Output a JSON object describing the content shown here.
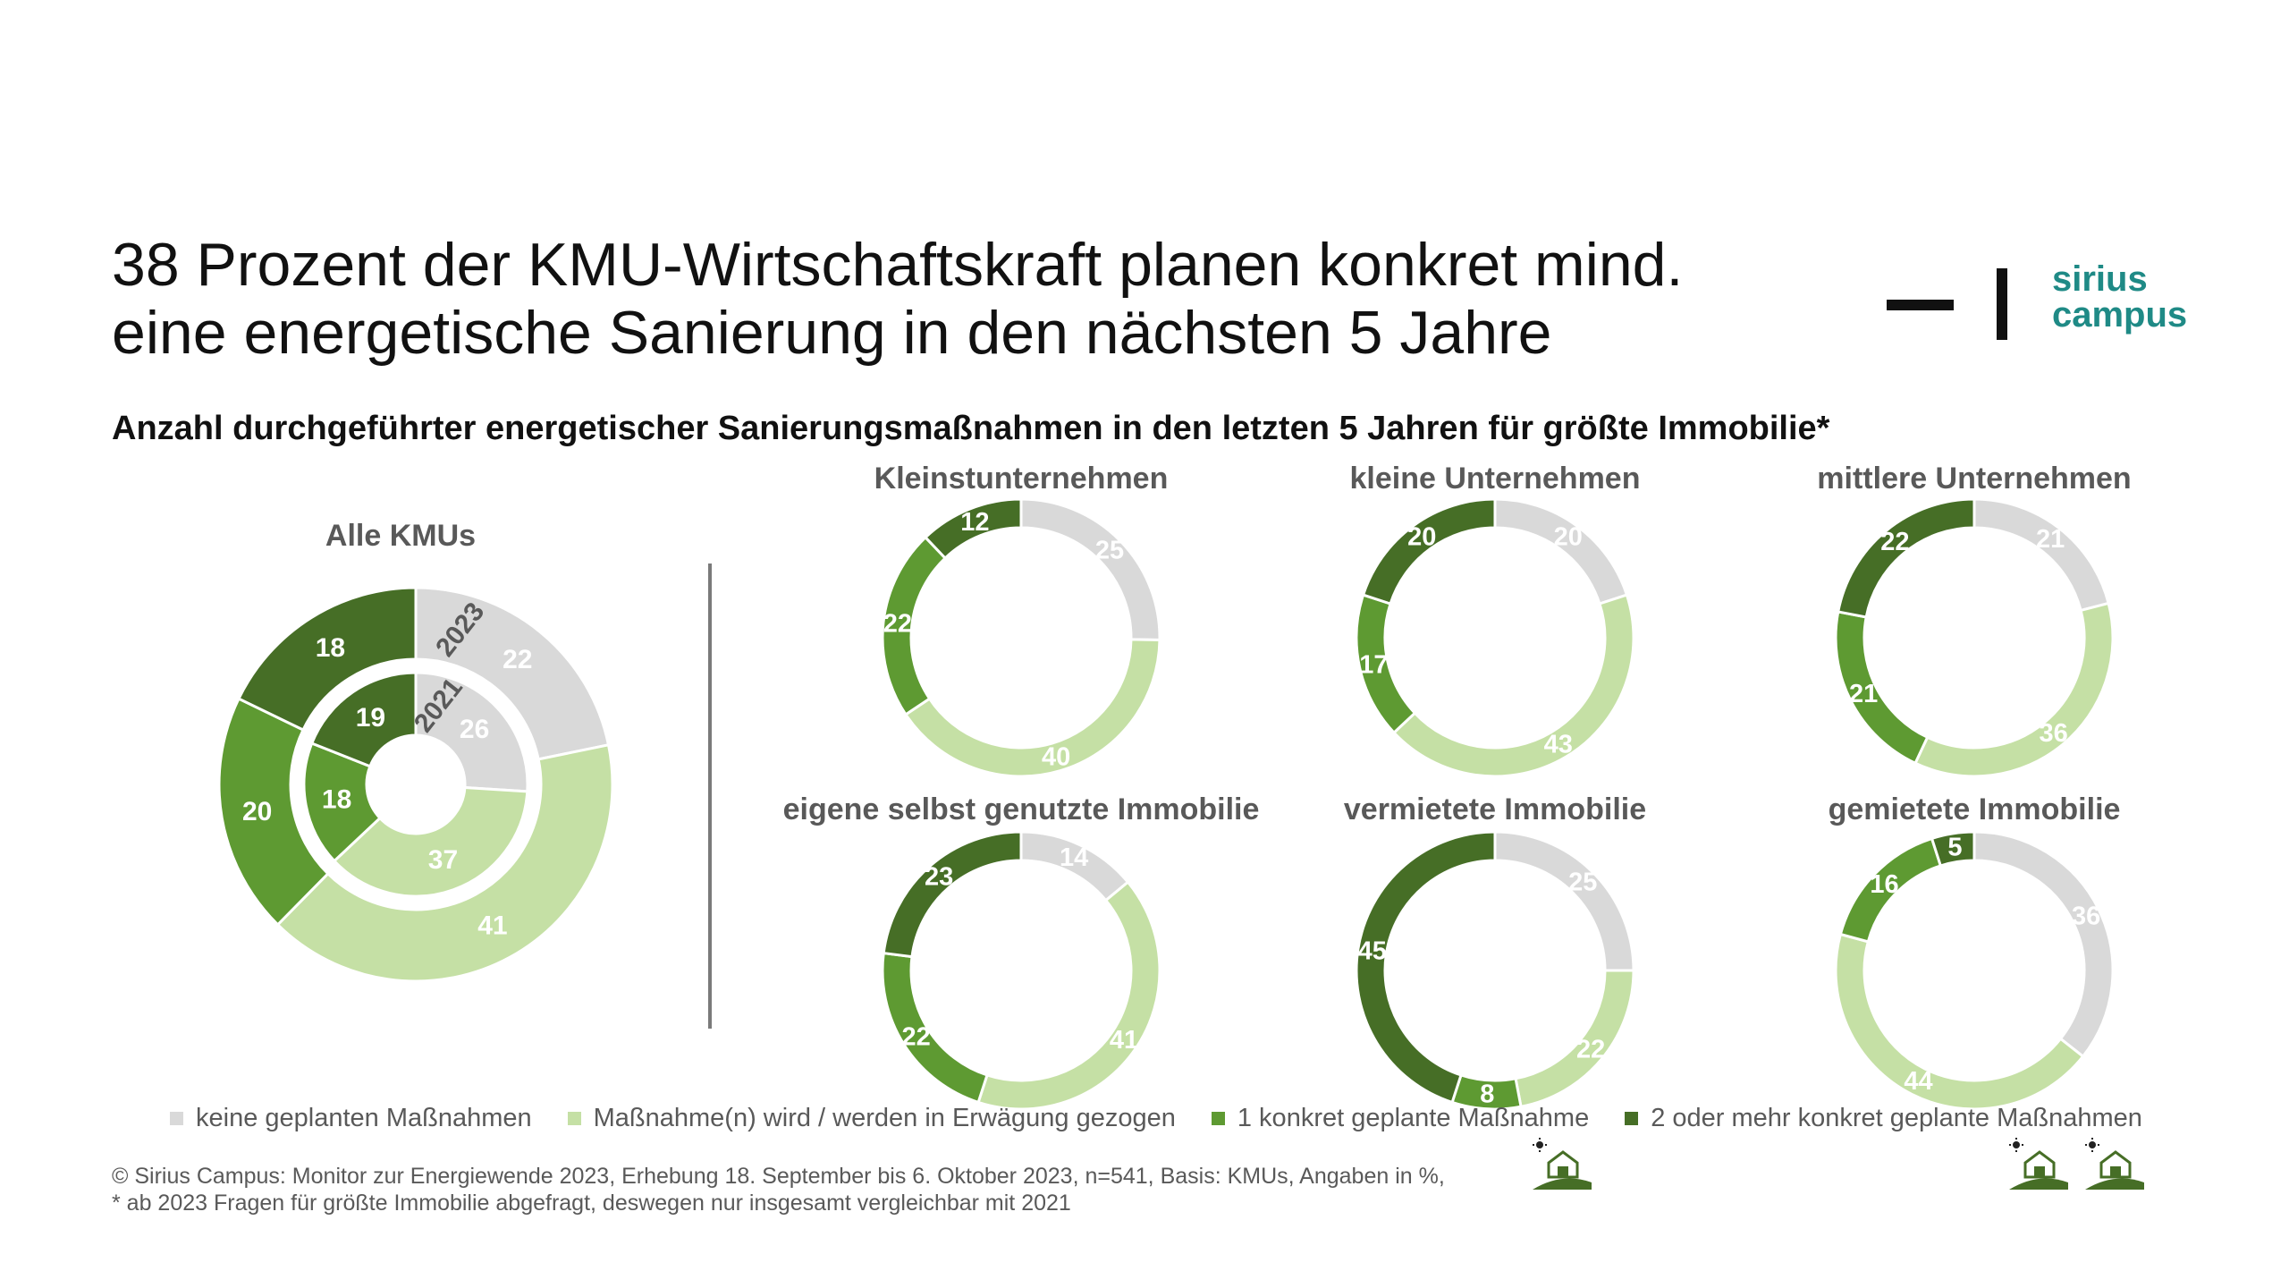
{
  "headline": {
    "line1": "38 Prozent der KMU-Wirtschaftskraft planen konkret mind.",
    "line2": "eine energetische Sanierung in den nächsten 5 Jahre"
  },
  "subtitle": "Anzahl durchgeführter energetischer Sanierungsmaßnahmen in den letzten 5 Jahren für größte Immobilie*",
  "logo": {
    "line1": "sirius",
    "line2": "campus"
  },
  "colors": {
    "keine": "#d9d9d9",
    "erwaegung": "#c5e0a5",
    "eine": "#5e9a32",
    "zwei_plus": "#466e26",
    "brand": "#1f8a86"
  },
  "chart_data": [
    {
      "type": "donut",
      "title": "Alle KMUs",
      "rings": [
        {
          "label": "2023",
          "categories": [
            "keine geplanten Maßnahmen",
            "Maßnahme(n) wird / werden in Erwägung gezogen",
            "1 konkret geplante Maßnahme",
            "2 oder mehr konkret geplante Maßnahmen"
          ],
          "values": [
            22,
            41,
            20,
            18
          ]
        },
        {
          "label": "2021",
          "categories": [
            "keine geplanten Maßnahmen",
            "Maßnahme(n) wird / werden in Erwägung gezogen",
            "1 konkret geplante Maßnahme",
            "2 oder mehr konkret geplante Maßnahmen"
          ],
          "values": [
            26,
            37,
            18,
            19
          ]
        }
      ]
    },
    {
      "type": "donut",
      "title": "Kleinstunternehmen",
      "values": [
        25,
        40,
        22,
        12
      ]
    },
    {
      "type": "donut",
      "title": "kleine Unternehmen",
      "values": [
        20,
        43,
        17,
        20
      ]
    },
    {
      "type": "donut",
      "title": "mittlere Unternehmen",
      "values": [
        21,
        36,
        21,
        22
      ]
    },
    {
      "type": "donut",
      "title": "eigene selbst genutzte Immobilie",
      "values": [
        14,
        41,
        22,
        23
      ]
    },
    {
      "type": "donut",
      "title": "vermietete Immobilie",
      "values": [
        25,
        22,
        8,
        45
      ]
    },
    {
      "type": "donut",
      "title": "gemietete Immobilie",
      "values": [
        36,
        44,
        16,
        5
      ]
    }
  ],
  "legend": [
    {
      "label": "keine geplanten Maßnahmen",
      "color": "#d9d9d9"
    },
    {
      "label": "Maßnahme(n) wird / werden in Erwägung gezogen",
      "color": "#c5e0a5"
    },
    {
      "label": "1 konkret geplante Maßnahme",
      "color": "#5e9a32"
    },
    {
      "label": "2 oder mehr konkret geplante Maßnahmen",
      "color": "#466e26"
    }
  ],
  "footnote": {
    "line1": "© Sirius Campus: Monitor zur Energiewende 2023, Erhebung 18. September bis 6. Oktober 2023, n=541, Basis: KMUs, Angaben in %,",
    "line2": "* ab 2023 Fragen für größte Immobilie abgefragt, deswegen nur insgesamt vergleichbar mit 2021"
  },
  "icons": [
    "house-sun-icon",
    "house-sun-icon",
    "house-sun-icon"
  ]
}
